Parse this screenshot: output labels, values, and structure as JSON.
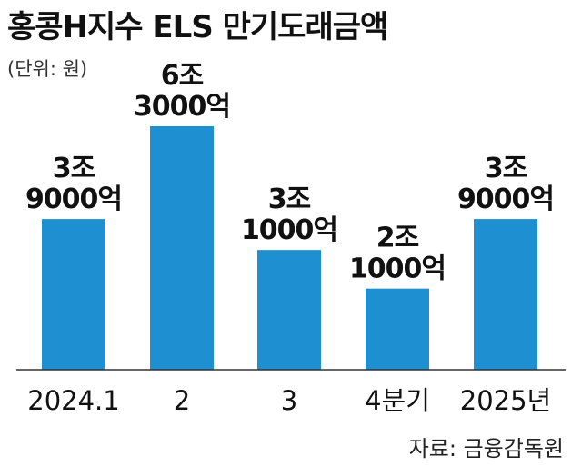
{
  "header": {
    "title": "홍콩H지수 ELS 만기도래금액",
    "unit": "(단위: 원)"
  },
  "footer": {
    "source": "자료: 금융감독원"
  },
  "colors": {
    "bar": "#1e90d2",
    "axis": "#333333"
  },
  "chart_data": {
    "type": "bar",
    "categories": [
      "2024.1",
      "2",
      "3",
      "4분기",
      "2025년"
    ],
    "values": [
      39000,
      63000,
      31000,
      21000,
      39000
    ],
    "value_unit": "억 원",
    "data_labels": [
      [
        "3조",
        "9000억"
      ],
      [
        "6조",
        "3000억"
      ],
      [
        "3조",
        "1000억"
      ],
      [
        "2조",
        "1000억"
      ],
      [
        "3조",
        "9000억"
      ]
    ],
    "ylim": [
      0,
      63000
    ],
    "grid": false,
    "legend": "none"
  }
}
